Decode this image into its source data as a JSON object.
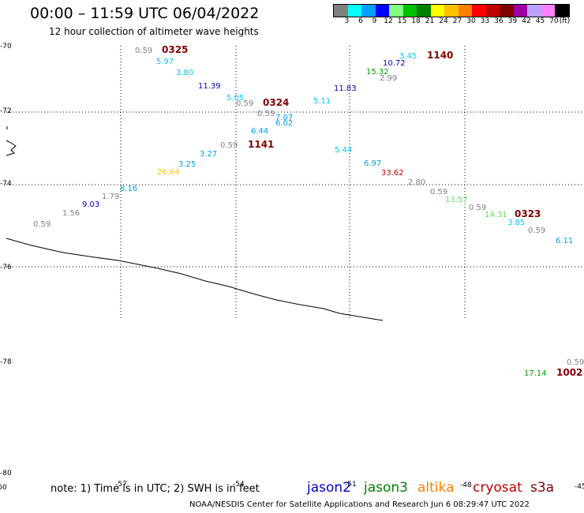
{
  "header": {
    "title": "00:00 – 11:59 UTC 06/04/2022",
    "subtitle": "12 hour collection of altimeter wave heights"
  },
  "scale": {
    "colors": [
      "#808080",
      "#00ffff",
      "#00a0ff",
      "#0000ff",
      "#80ff80",
      "#00c000",
      "#008000",
      "#ffff00",
      "#ffc000",
      "#ff8000",
      "#ff0000",
      "#c00000",
      "#800000",
      "#a000a0",
      "#c0a0ff",
      "#ff80ff",
      "#000000"
    ],
    "labels": [
      "3",
      "6",
      "9",
      "12",
      "15",
      "18",
      "21",
      "24",
      "27",
      "30",
      "33",
      "36",
      "39",
      "42",
      "45",
      "70",
      "(ft)"
    ]
  },
  "axes": {
    "lat_labels": [
      "-70",
      "-72",
      "-74",
      "-76",
      "-78",
      "-80"
    ],
    "lon_labels": [
      "-60",
      "-57",
      "-54",
      "-51",
      "-48",
      "-45"
    ]
  },
  "annotations": [
    {
      "text": "0.59",
      "color": "#808080"
    },
    {
      "text": "0325",
      "color": "#800000"
    },
    {
      "text": "5.97",
      "color": "#00c8ff"
    },
    {
      "text": "3.80",
      "color": "#00c8ff"
    },
    {
      "text": "11.39",
      "color": "#0000c0"
    },
    {
      "text": "5.05",
      "color": "#00c8ff"
    },
    {
      "text": "0.59",
      "color": "#808080"
    },
    {
      "text": "0324",
      "color": "#800000"
    },
    {
      "text": "0.59",
      "color": "#808080"
    },
    {
      "text": "7.07",
      "color": "#00a0e0"
    },
    {
      "text": "6.02",
      "color": "#00a0e0"
    },
    {
      "text": "6.44",
      "color": "#00a0e0"
    },
    {
      "text": "0.59",
      "color": "#808080"
    },
    {
      "text": "1141",
      "color": "#800000"
    },
    {
      "text": "3.27",
      "color": "#00a0e0"
    },
    {
      "text": "3.25",
      "color": "#00a0e0"
    },
    {
      "text": "26.64",
      "color": "#ffc000"
    },
    {
      "text": "8.16",
      "color": "#00a0e0"
    },
    {
      "text": "1.79",
      "color": "#808080"
    },
    {
      "text": "9.03",
      "color": "#0000c0"
    },
    {
      "text": "1.56",
      "color": "#808080"
    },
    {
      "text": "0.59",
      "color": "#808080"
    },
    {
      "text": "3.45",
      "color": "#00c8ff"
    },
    {
      "text": "1140",
      "color": "#800000"
    },
    {
      "text": "10.72",
      "color": "#0000c0"
    },
    {
      "text": "15.32",
      "color": "#00a000"
    },
    {
      "text": "2.99",
      "color": "#808080"
    },
    {
      "text": "11.83",
      "color": "#0000c0"
    },
    {
      "text": "5.11",
      "color": "#00c8ff"
    },
    {
      "text": "5.44",
      "color": "#00c8ff"
    },
    {
      "text": "6.97",
      "color": "#00a0e0"
    },
    {
      "text": "33.62",
      "color": "#c00000"
    },
    {
      "text": "2.80",
      "color": "#808080"
    },
    {
      "text": "0.59",
      "color": "#808080"
    },
    {
      "text": "13.57",
      "color": "#60e060"
    },
    {
      "text": "0.59",
      "color": "#808080"
    },
    {
      "text": "14.31",
      "color": "#60e060"
    },
    {
      "text": "0323",
      "color": "#800000"
    },
    {
      "text": "3.85",
      "color": "#00c8ff"
    },
    {
      "text": "0.59",
      "color": "#808080"
    },
    {
      "text": "6.11",
      "color": "#00a0e0"
    },
    {
      "text": "0.59",
      "color": "#808080"
    },
    {
      "text": "17.14",
      "color": "#00a000"
    },
    {
      "text": "1002",
      "color": "#800000"
    }
  ],
  "footer": {
    "note": "note: 1) Time is in UTC; 2) SWH is in feet",
    "satellites": [
      {
        "name": "jason2",
        "color": "#0000c0"
      },
      {
        "name": "jason3",
        "color": "#008000"
      },
      {
        "name": "altika",
        "color": "#ff8000"
      },
      {
        "name": "cryosat",
        "color": "#c00000"
      },
      {
        "name": "s3a",
        "color": "#800000"
      }
    ],
    "credit": "NOAA/NESDIS Center for Satellite Applications and Research    Jun  6 08:29:47 UTC 2022"
  }
}
